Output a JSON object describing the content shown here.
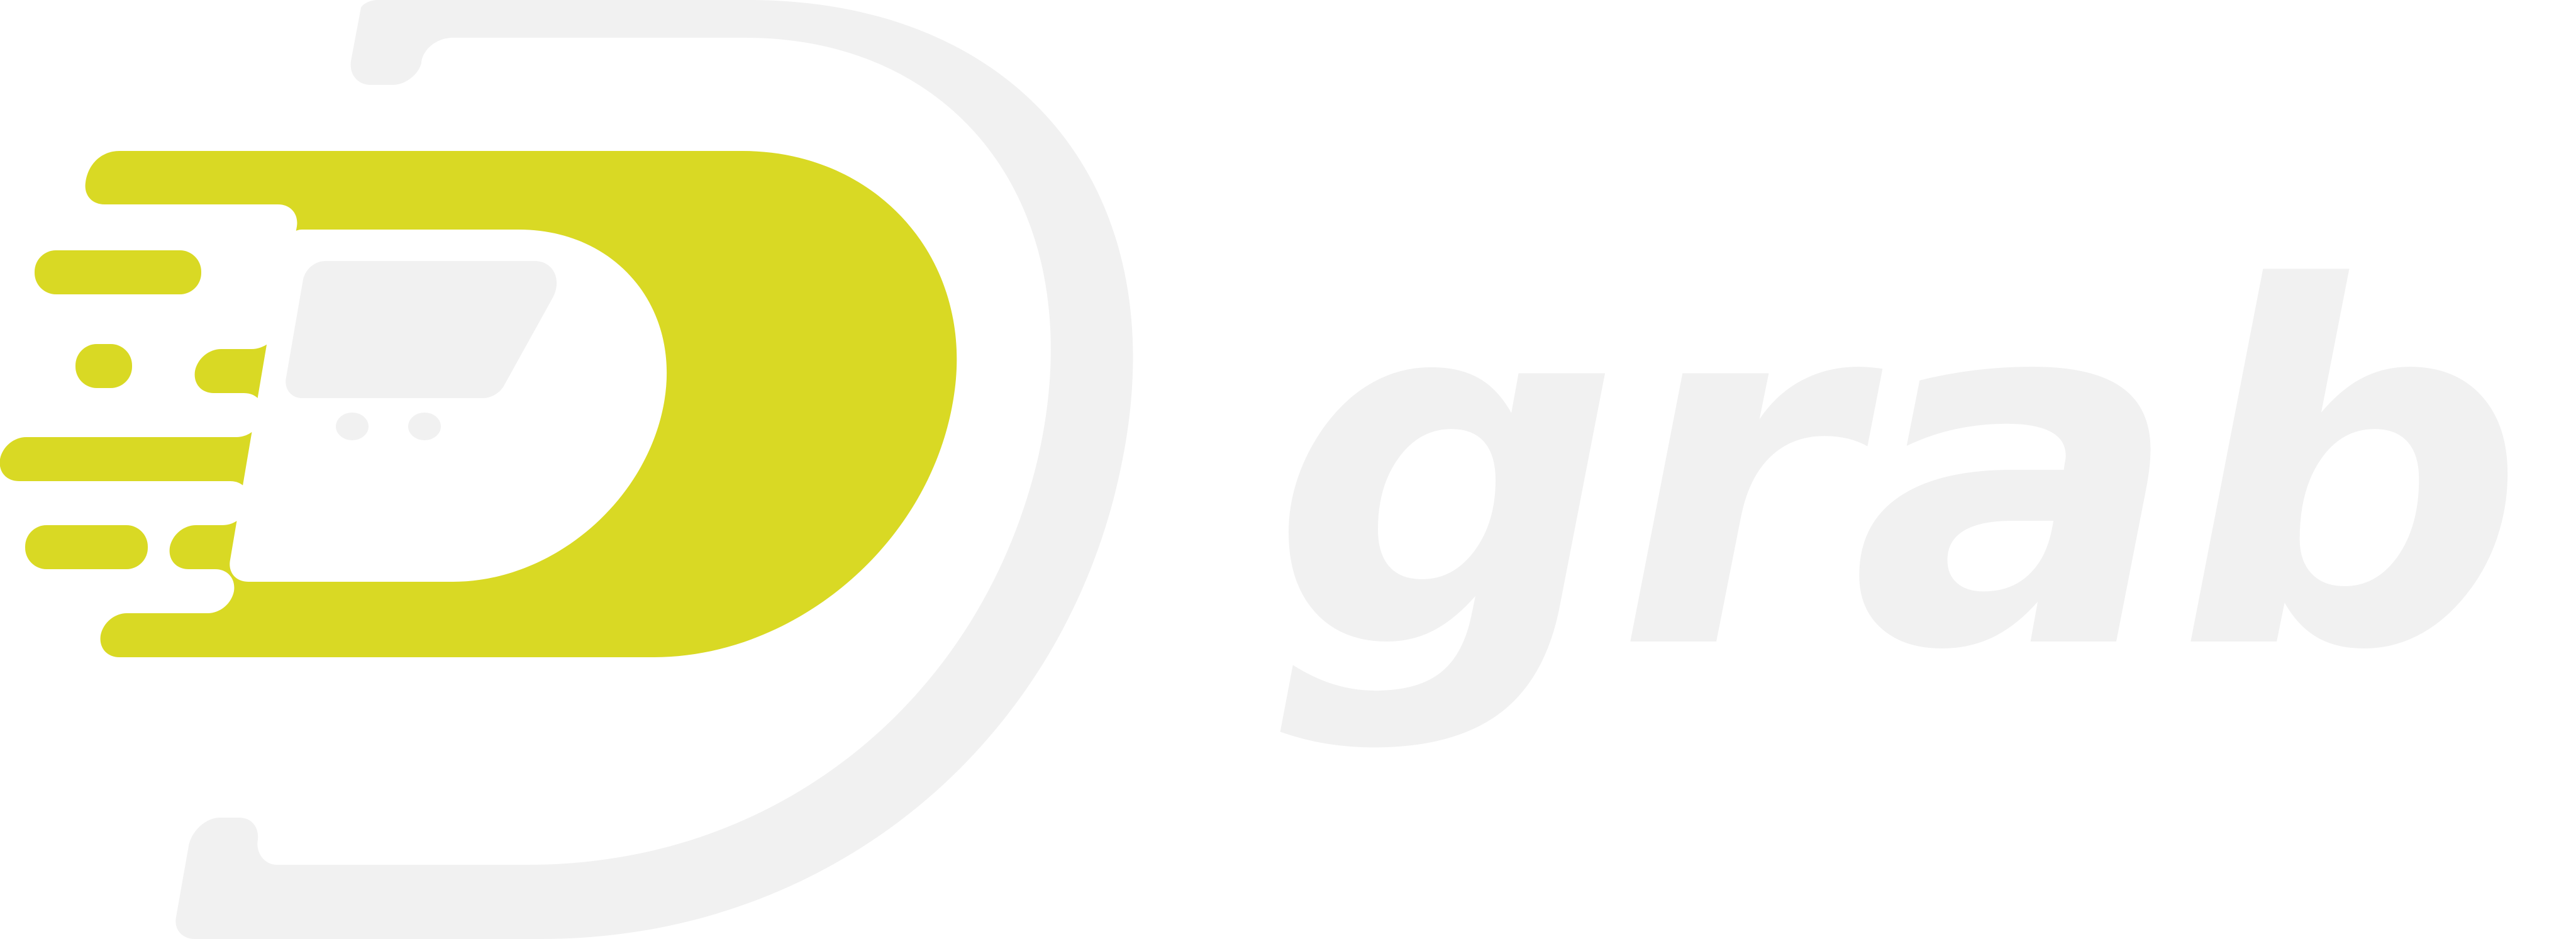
{
  "logo": {
    "brand_text": "Dgrab",
    "wordmark": "grab",
    "colors": {
      "accent": "#D9D924",
      "light": "#F1F1F1",
      "background": "#FFFFFF"
    }
  }
}
